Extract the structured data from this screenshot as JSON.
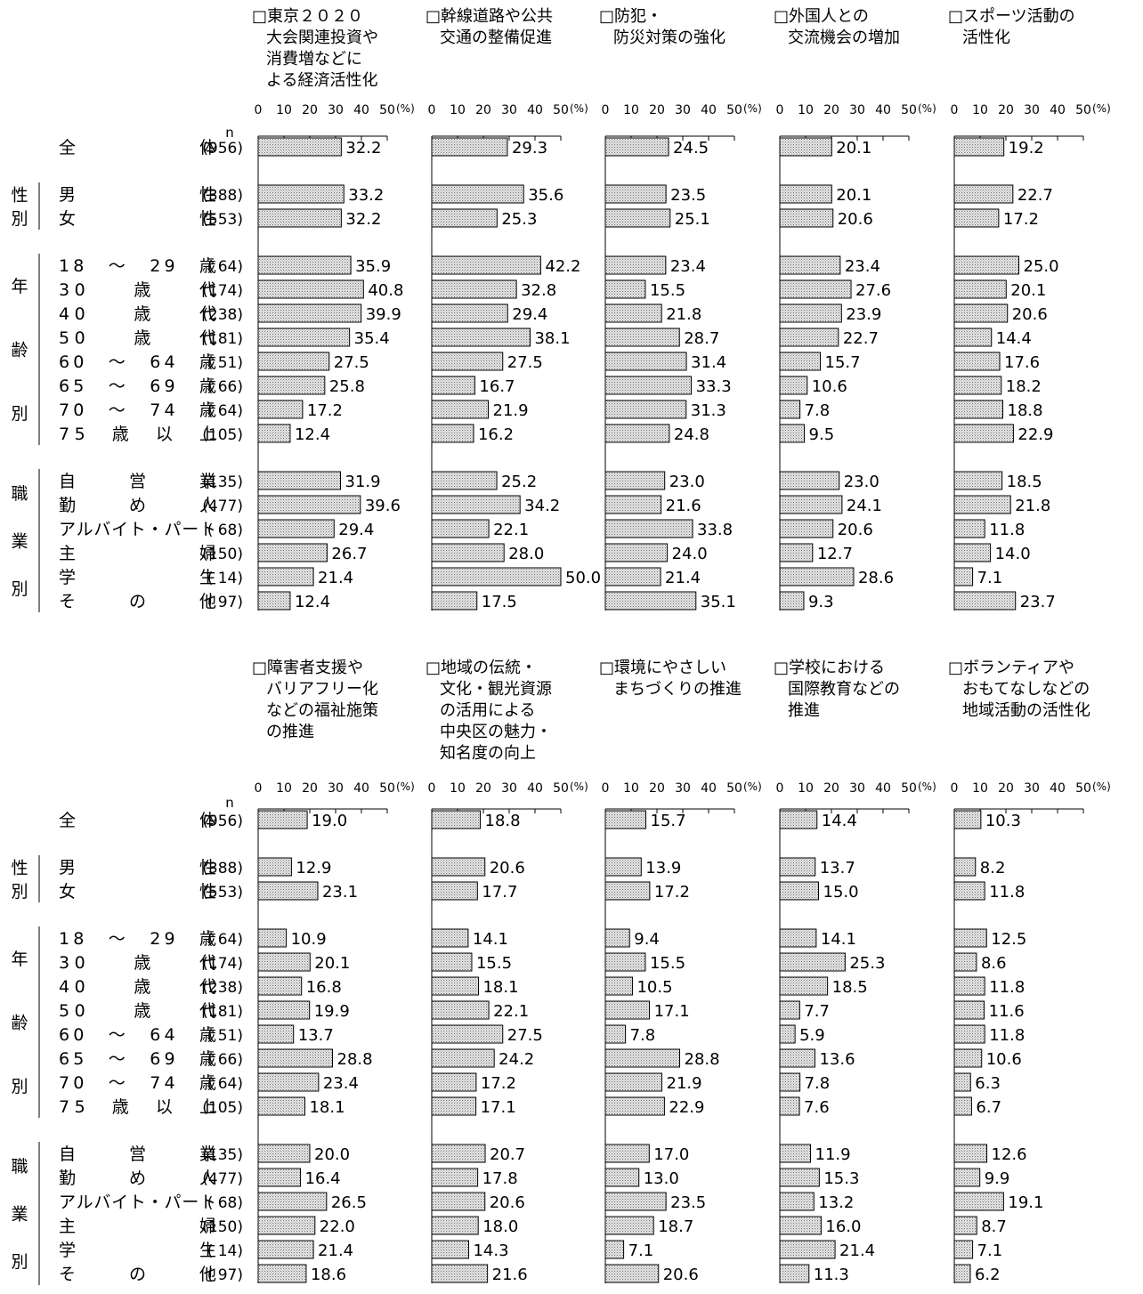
{
  "unit_label": "(%)",
  "n_header": "n",
  "rows": [
    {
      "label": "全　　　　　体",
      "n": "(956)"
    },
    {
      "label": "男　　　　　性",
      "n": "(388)"
    },
    {
      "label": "女　　　　　性",
      "n": "(553)"
    },
    {
      "label": "18　～　29　歳",
      "n": "(  64)"
    },
    {
      "label": "30　　歳　　代",
      "n": "(174)"
    },
    {
      "label": "40　　歳　　代",
      "n": "(238)"
    },
    {
      "label": "50　　歳　　代",
      "n": "(181)"
    },
    {
      "label": "60　～　64　歳",
      "n": "(  51)"
    },
    {
      "label": "65　～　69　歳",
      "n": "(  66)"
    },
    {
      "label": "70　～　74　歳",
      "n": "(  64)"
    },
    {
      "label": "75　歳　以　上",
      "n": "(105)"
    },
    {
      "label": "自　　営　　業",
      "n": "(135)"
    },
    {
      "label": "勤　　め　　人",
      "n": "(477)"
    },
    {
      "label": "アルバイト・パート",
      "n": "(  68)"
    },
    {
      "label": "主　　　　　婦",
      "n": "(150)"
    },
    {
      "label": "学　　　　　生",
      "n": "(  14)"
    },
    {
      "label": "そ　　の　　他",
      "n": "(  97)"
    }
  ],
  "groups": [
    {
      "label": "性別",
      "chars": [
        "性",
        "別"
      ]
    },
    {
      "label": "年齢別",
      "chars": [
        "年",
        "齢",
        "別"
      ]
    },
    {
      "label": "職業別",
      "chars": [
        "職",
        "業",
        "別"
      ]
    }
  ],
  "chart_data": {
    "type": "bar",
    "orientation": "horizontal",
    "xlim": [
      0,
      50
    ],
    "xticks": [
      "0",
      "10",
      "20",
      "30",
      "40",
      "50"
    ],
    "bar_fill": "#e4e4e4",
    "bar_pattern": "dotted",
    "categories": [
      "全体",
      "男性",
      "女性",
      "18～29歳",
      "30歳代",
      "40歳代",
      "50歳代",
      "60～64歳",
      "65～69歳",
      "70～74歳",
      "75歳以上",
      "自営業",
      "勤め人",
      "アルバイト・パート",
      "主婦",
      "学生",
      "その他"
    ],
    "series": [
      {
        "name": "□東京２０２０大会関連投資や消費増などによる経済活性化",
        "title_lines": [
          "□東京２０２０",
          "大会関連投資や",
          "消費増などに",
          "よる経済活性化"
        ],
        "values": [
          32.2,
          33.2,
          32.2,
          35.9,
          40.8,
          39.9,
          35.4,
          27.5,
          25.8,
          17.2,
          12.4,
          31.9,
          39.6,
          29.4,
          26.7,
          21.4,
          12.4
        ]
      },
      {
        "name": "□幹線道路や公共交通の整備促進",
        "title_lines": [
          "□幹線道路や公共",
          "交通の整備促進"
        ],
        "values": [
          29.3,
          35.6,
          25.3,
          42.2,
          32.8,
          29.4,
          38.1,
          27.5,
          16.7,
          21.9,
          16.2,
          25.2,
          34.2,
          22.1,
          28.0,
          50.0,
          17.5
        ]
      },
      {
        "name": "□防犯・防災対策の強化",
        "title_lines": [
          "□防犯・",
          "防災対策の強化"
        ],
        "values": [
          24.5,
          23.5,
          25.1,
          23.4,
          15.5,
          21.8,
          28.7,
          31.4,
          33.3,
          31.3,
          24.8,
          23.0,
          21.6,
          33.8,
          24.0,
          21.4,
          35.1
        ]
      },
      {
        "name": "□外国人との交流機会の増加",
        "title_lines": [
          "□外国人との",
          "交流機会の増加"
        ],
        "values": [
          20.1,
          20.1,
          20.6,
          23.4,
          27.6,
          23.9,
          22.7,
          15.7,
          10.6,
          7.8,
          9.5,
          23.0,
          24.1,
          20.6,
          12.7,
          28.6,
          9.3
        ]
      },
      {
        "name": "□スポーツ活動の活性化",
        "title_lines": [
          "□スポーツ活動の",
          "活性化"
        ],
        "values": [
          19.2,
          22.7,
          17.2,
          25.0,
          20.1,
          20.6,
          14.4,
          17.6,
          18.2,
          18.8,
          22.9,
          18.5,
          21.8,
          11.8,
          14.0,
          7.1,
          23.7
        ]
      },
      {
        "name": "□障害者支援やバリアフリー化などの福祉施策の推進",
        "title_lines": [
          "□障害者支援や",
          "バリアフリー化",
          "などの福祉施策",
          "の推進"
        ],
        "values": [
          19.0,
          12.9,
          23.1,
          10.9,
          20.1,
          16.8,
          19.9,
          13.7,
          28.8,
          23.4,
          18.1,
          20.0,
          16.4,
          26.5,
          22.0,
          21.4,
          18.6
        ]
      },
      {
        "name": "□地域の伝統・文化・観光資源の活用による中央区の魅力・知名度の向上",
        "title_lines": [
          "□地域の伝統・",
          "文化・観光資源",
          "の活用による",
          "中央区の魅力・",
          "知名度の向上"
        ],
        "values": [
          18.8,
          20.6,
          17.7,
          14.1,
          15.5,
          18.1,
          22.1,
          27.5,
          24.2,
          17.2,
          17.1,
          20.7,
          17.8,
          20.6,
          18.0,
          14.3,
          21.6
        ]
      },
      {
        "name": "□環境にやさしいまちづくりの推進",
        "title_lines": [
          "□環境にやさしい",
          "まちづくりの推進"
        ],
        "values": [
          15.7,
          13.9,
          17.2,
          9.4,
          15.5,
          10.5,
          17.1,
          7.8,
          28.8,
          21.9,
          22.9,
          17.0,
          13.0,
          23.5,
          18.7,
          7.1,
          20.6
        ]
      },
      {
        "name": "□学校における国際教育などの推進",
        "title_lines": [
          "□学校における",
          "国際教育などの",
          "推進"
        ],
        "values": [
          14.4,
          13.7,
          15.0,
          14.1,
          25.3,
          18.5,
          7.7,
          5.9,
          13.6,
          7.8,
          7.6,
          11.9,
          15.3,
          13.2,
          16.0,
          21.4,
          11.3
        ]
      },
      {
        "name": "□ボランティアやおもてなしなどの地域活動の活性化",
        "title_lines": [
          "□ボランティアや",
          "おもてなしなどの",
          "地域活動の活性化"
        ],
        "values": [
          10.3,
          8.2,
          11.8,
          12.5,
          8.6,
          11.8,
          11.6,
          11.8,
          10.6,
          6.3,
          6.7,
          12.6,
          9.9,
          19.1,
          8.7,
          7.1,
          6.2
        ]
      }
    ]
  }
}
